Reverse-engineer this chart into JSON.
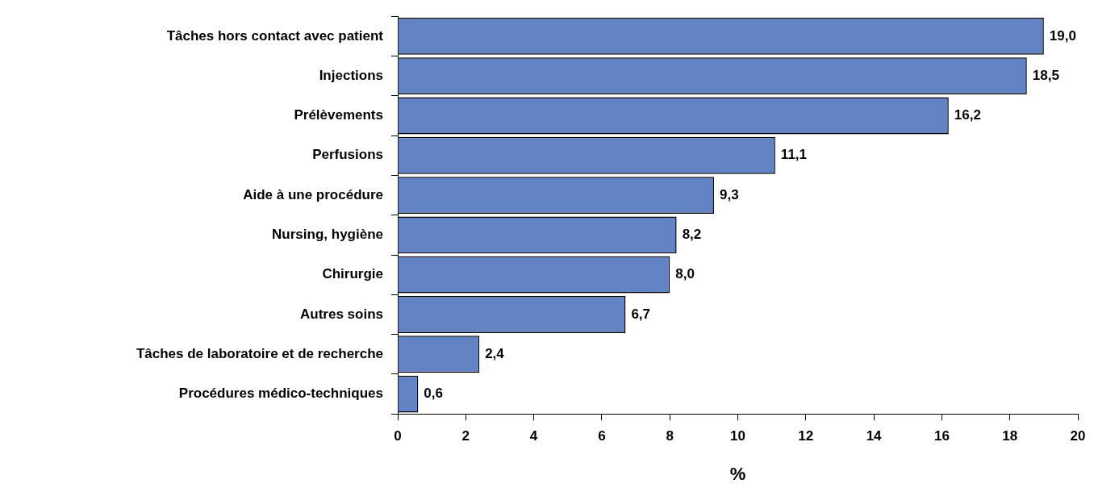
{
  "chart_data": {
    "type": "bar",
    "orientation": "horizontal",
    "xlabel": "%",
    "categories": [
      "Tâches hors contact avec patient",
      "Injections",
      "Prélèvements",
      "Perfusions",
      "Aide à une procédure",
      "Nursing, hygiène",
      "Chirurgie",
      "Autres soins",
      "Tâches de laboratoire et de recherche",
      "Procédures médico-techniques"
    ],
    "values": [
      19.0,
      18.5,
      16.2,
      11.1,
      9.3,
      8.2,
      8.0,
      6.7,
      2.4,
      0.6
    ],
    "value_labels": [
      "19,0",
      "18,5",
      "16,2",
      "11,1",
      "9,3",
      "8,2",
      "8,0",
      "6,7",
      "2,4",
      "0,6"
    ],
    "color": "#6283c4",
    "xlim": [
      0,
      20
    ],
    "xticks": [
      0,
      2,
      4,
      6,
      8,
      10,
      12,
      14,
      16,
      18,
      20
    ],
    "grid": false,
    "legend": false
  }
}
